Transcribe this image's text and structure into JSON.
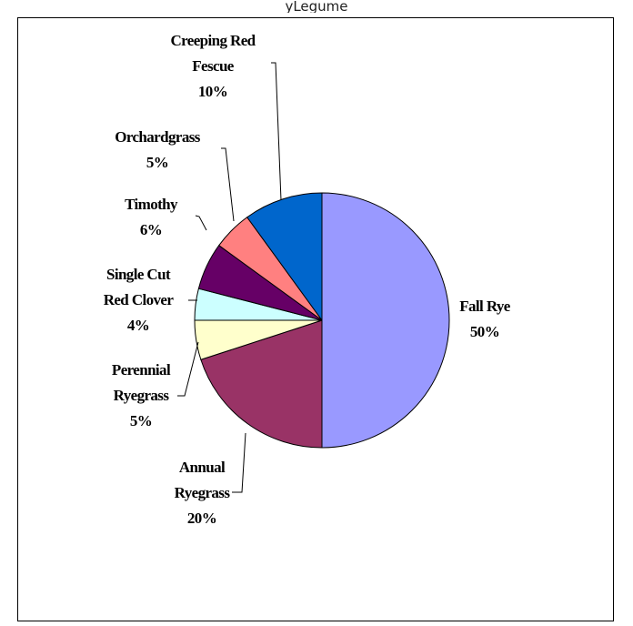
{
  "header": {
    "top_text": "yLegume"
  },
  "chart_data": {
    "type": "pie",
    "slices": [
      {
        "label": [
          "Fall Rye"
        ],
        "pct_label": "50%",
        "value": 50,
        "color": "#9999FF"
      },
      {
        "label": [
          "Annual",
          "Ryegrass"
        ],
        "pct_label": "20%",
        "value": 20,
        "color": "#993366"
      },
      {
        "label": [
          "Perennial",
          "Ryegrass"
        ],
        "pct_label": "5%",
        "value": 5,
        "color": "#FFFFCC"
      },
      {
        "label": [
          "Single Cut",
          "Red Clover"
        ],
        "pct_label": "4%",
        "value": 4,
        "color": "#CCFFFF"
      },
      {
        "label": [
          "Timothy"
        ],
        "pct_label": "6%",
        "value": 6,
        "color": "#660066"
      },
      {
        "label": [
          "Orchardgrass"
        ],
        "pct_label": "5%",
        "value": 5,
        "color": "#FF8080"
      },
      {
        "label": [
          "Creeping Red",
          "Fescue"
        ],
        "pct_label": "10%",
        "value": 10,
        "color": "#0066CC"
      }
    ],
    "start": "12 o'clock",
    "direction": "clockwise",
    "legend": "none"
  }
}
